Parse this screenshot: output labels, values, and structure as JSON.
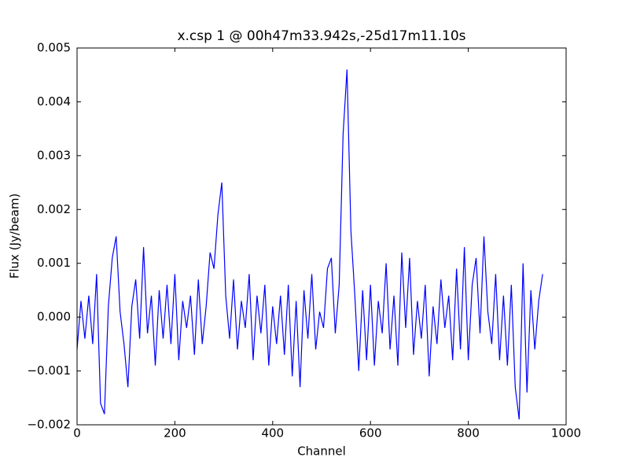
{
  "chart_data": {
    "type": "line",
    "title": "x.csp 1 @ 00h47m33.942s,-25d17m11.10s",
    "x_label": "Channel",
    "y_label": "Flux (Jy/beam)",
    "x": [
      0,
      8,
      16,
      24,
      32,
      40,
      48,
      56,
      64,
      72,
      80,
      88,
      96,
      104,
      112,
      120,
      128,
      136,
      144,
      152,
      160,
      168,
      176,
      184,
      192,
      200,
      208,
      216,
      224,
      232,
      240,
      248,
      256,
      264,
      272,
      280,
      288,
      296,
      304,
      312,
      320,
      328,
      336,
      344,
      352,
      360,
      368,
      376,
      384,
      392,
      400,
      408,
      416,
      424,
      432,
      440,
      448,
      456,
      464,
      472,
      480,
      488,
      496,
      504,
      512,
      520,
      528,
      536,
      544,
      552,
      560,
      568,
      576,
      584,
      592,
      600,
      608,
      616,
      624,
      632,
      640,
      648,
      656,
      664,
      672,
      680,
      688,
      696,
      704,
      712,
      720,
      728,
      736,
      744,
      752,
      760,
      768,
      776,
      784,
      792,
      800,
      808,
      816,
      824,
      832,
      840,
      848,
      856,
      864,
      872,
      880,
      888,
      896,
      904,
      912,
      920,
      928,
      936,
      944,
      952
    ],
    "series": [
      {
        "name": "Flux",
        "color": "#0000ff",
        "values": [
          -0.0006,
          0.0003,
          -0.0004,
          0.0004,
          -0.0005,
          0.0008,
          -0.0016,
          -0.0018,
          0.0002,
          0.0011,
          0.0015,
          0.0001,
          -0.0005,
          -0.0013,
          0.0002,
          0.0007,
          -0.0004,
          0.0013,
          -0.0003,
          0.0004,
          -0.0009,
          0.0005,
          -0.0004,
          0.0006,
          -0.0005,
          0.0008,
          -0.0008,
          0.0003,
          -0.0002,
          0.0004,
          -0.0007,
          0.0007,
          -0.0005,
          0.0002,
          0.0012,
          0.0009,
          0.0019,
          0.0025,
          0.0004,
          -0.0004,
          0.0007,
          -0.0006,
          0.0003,
          -0.0002,
          0.0008,
          -0.0008,
          0.0004,
          -0.0003,
          0.0006,
          -0.0009,
          0.0002,
          -0.0005,
          0.0004,
          -0.0007,
          0.0006,
          -0.0011,
          0.0003,
          -0.0013,
          0.0005,
          -0.0004,
          0.0008,
          -0.0006,
          0.0001,
          -0.0002,
          0.0009,
          0.0011,
          -0.0003,
          0.0006,
          0.0034,
          0.0046,
          0.0016,
          0.0004,
          -0.001,
          0.0005,
          -0.0008,
          0.0006,
          -0.0009,
          0.0003,
          -0.0003,
          0.001,
          -0.0006,
          0.0004,
          -0.0009,
          0.0012,
          -0.0002,
          0.0011,
          -0.0007,
          0.0003,
          -0.0004,
          0.0006,
          -0.0011,
          0.0002,
          -0.0005,
          0.0007,
          -0.0002,
          0.0004,
          -0.0008,
          0.0009,
          -0.0006,
          0.0013,
          -0.0008,
          0.0006,
          0.0011,
          -0.0003,
          0.0015,
          0.0001,
          -0.0005,
          0.0008,
          -0.0008,
          0.0004,
          -0.0009,
          0.0006,
          -0.0013,
          -0.0019,
          0.001,
          -0.0014,
          0.0005,
          -0.0006,
          0.0003,
          0.0008
        ]
      }
    ],
    "xlim": [
      0,
      1000
    ],
    "xticks": [
      0,
      200,
      400,
      600,
      800,
      1000
    ],
    "ylim": [
      -0.002,
      0.005
    ],
    "yticks": [
      {
        "value": -0.002,
        "label": "−0.002"
      },
      {
        "value": -0.001,
        "label": "−0.001"
      },
      {
        "value": 0,
        "label": "0.000"
      },
      0.001,
      0.002,
      0.003,
      0.004,
      0.005
    ],
    "grid": false
  }
}
